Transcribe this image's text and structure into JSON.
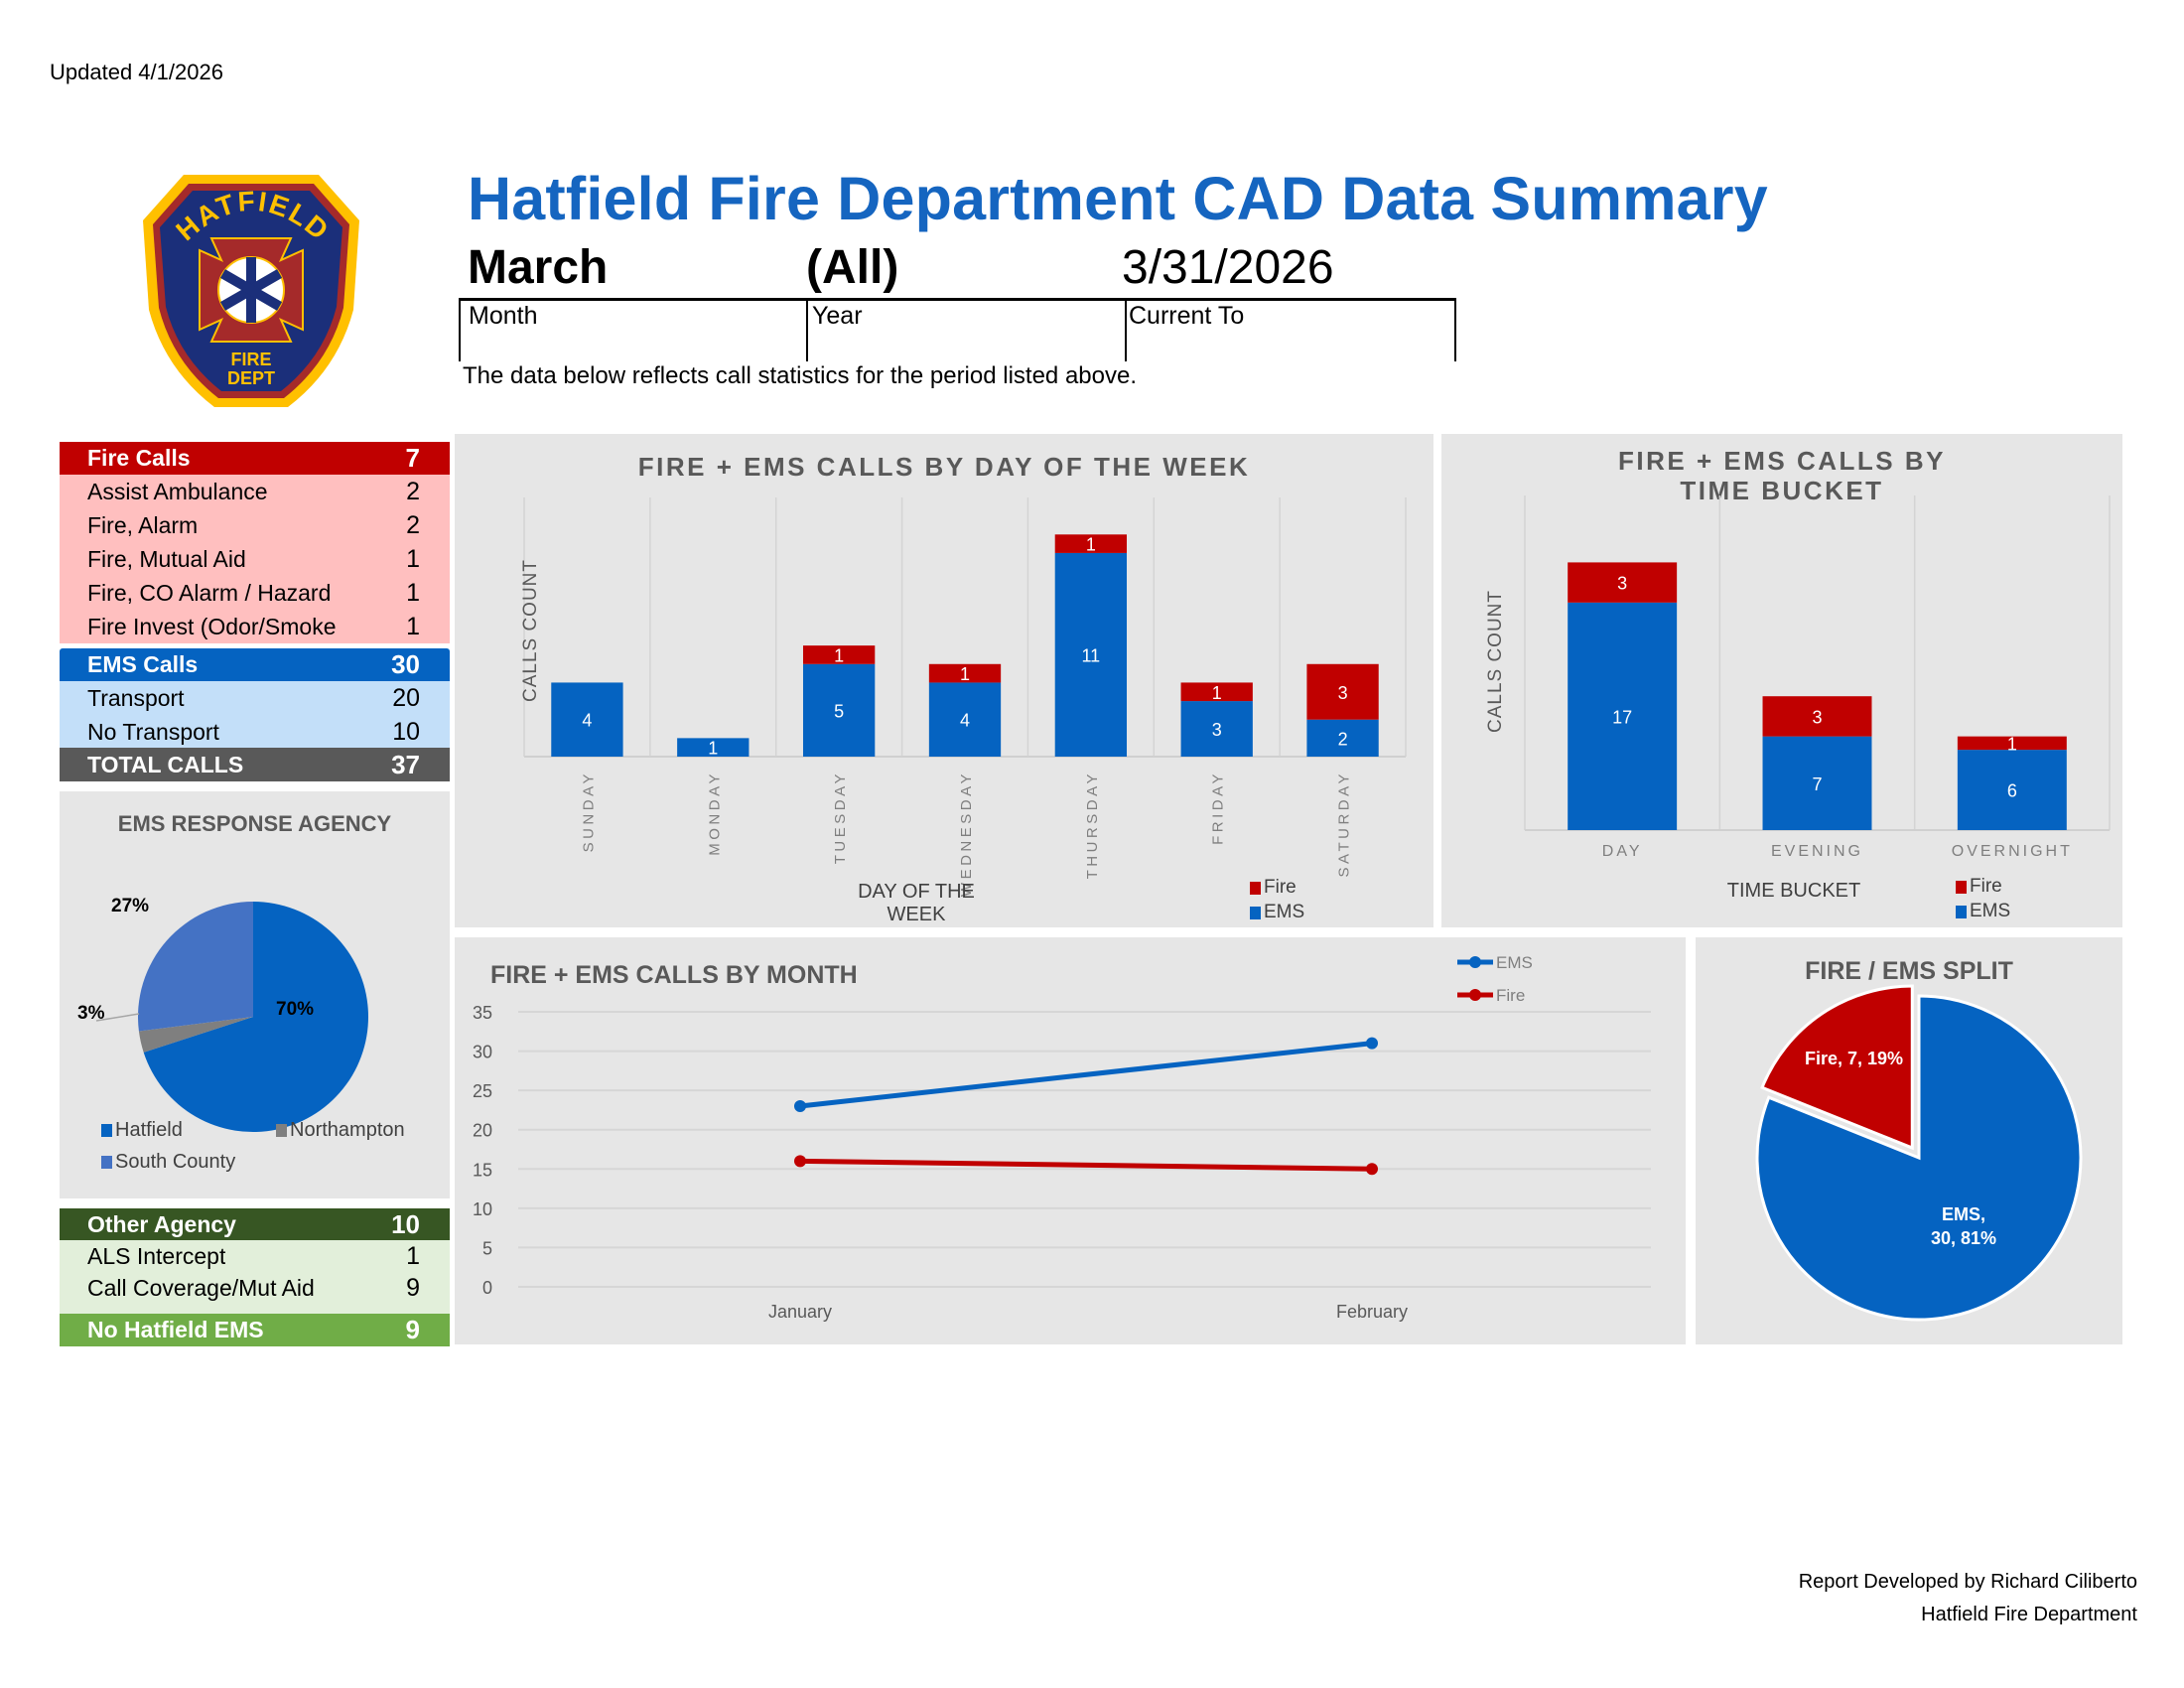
{
  "header": {
    "updated": "Updated 4/1/2026",
    "title": "Hatfield Fire Department CAD Data Summary",
    "month_value": "March",
    "year_value": "(All)",
    "current_value": "3/31/2026",
    "month_label": "Month",
    "year_label": "Year",
    "current_label": "Current To",
    "description": "The data below reflects call statistics for the period listed above."
  },
  "logo": {
    "top_text": "HATFIELD",
    "bottom_text_1": "FIRE",
    "bottom_text_2": "DEPT"
  },
  "fire_calls": {
    "label": "Fire Calls",
    "total": "7",
    "items": [
      {
        "label": "Assist Ambulance",
        "count": "2"
      },
      {
        "label": "Fire, Alarm",
        "count": "2"
      },
      {
        "label": "Fire, Mutual Aid",
        "count": "1"
      },
      {
        "label": "Fire, CO Alarm / Hazard",
        "count": "1"
      },
      {
        "label": "Fire Invest (Odor/Smoke",
        "count": "1"
      }
    ]
  },
  "ems_calls": {
    "label": "EMS Calls",
    "total": "30",
    "items": [
      {
        "label": "Transport",
        "count": "20"
      },
      {
        "label": "No Transport",
        "count": "10"
      }
    ]
  },
  "total_calls": {
    "label": "TOTAL CALLS",
    "total": "37"
  },
  "other_agency": {
    "label": "Other Agency",
    "total": "10",
    "items": [
      {
        "label": "ALS Intercept",
        "count": "1"
      },
      {
        "label": "Call Coverage/Mut Aid",
        "count": "9"
      }
    ]
  },
  "no_hatfield_ems": {
    "label": "No Hatfield EMS",
    "total": "9"
  },
  "colors": {
    "fire": "#c00000",
    "ems": "#0563c1",
    "fire_light": "#ffbfbf",
    "ems_light": "#c3dff9",
    "total": "#595959",
    "other_dark": "#375623",
    "other_light": "#e2efda",
    "other_green": "#70ad47",
    "south_county": "#4472c4",
    "northampton": "#7f7f7f",
    "title_blue": "#1565c0"
  },
  "footer": {
    "line1": "Report Developed by Richard Ciliberto",
    "line2": "Hatfield Fire Department"
  },
  "chart_data": [
    {
      "id": "agency_pie",
      "type": "pie",
      "title": "EMS RESPONSE AGENCY",
      "slices": [
        {
          "name": "Hatfield",
          "value": 70,
          "label": "70%",
          "color": "#0563c1"
        },
        {
          "name": "Northampton",
          "value": 3,
          "label": "3%",
          "color": "#7f7f7f"
        },
        {
          "name": "South County",
          "value": 27,
          "label": "27%",
          "color": "#4472c4"
        }
      ],
      "legend": "bottom"
    },
    {
      "id": "day_of_week",
      "type": "bar",
      "stacked": true,
      "title": "FIRE + EMS CALLS BY DAY OF THE WEEK",
      "xlabel": "DAY OF THE WEEK",
      "ylabel": "CALLS COUNT",
      "categories": [
        "SUNDAY",
        "MONDAY",
        "TUESDAY",
        "WEDNESDAY",
        "THURSDAY",
        "FRIDAY",
        "SATURDAY"
      ],
      "series": [
        {
          "name": "EMS",
          "values": [
            4,
            1,
            5,
            4,
            11,
            3,
            2
          ],
          "color": "#0563c1"
        },
        {
          "name": "Fire",
          "values": [
            0,
            0,
            1,
            1,
            1,
            1,
            3
          ],
          "color": "#c00000"
        }
      ],
      "legend_order": [
        "Fire",
        "EMS"
      ],
      "ylim": [
        0,
        14
      ],
      "legend": "bottom-right"
    },
    {
      "id": "time_bucket",
      "type": "bar",
      "stacked": true,
      "title": "FIRE + EMS CALLS BY TIME BUCKET",
      "xlabel": "TIME BUCKET",
      "ylabel": "CALLS COUNT",
      "categories": [
        "DAY",
        "EVENING",
        "OVERNIGHT"
      ],
      "series": [
        {
          "name": "EMS",
          "values": [
            17,
            7,
            6
          ],
          "color": "#0563c1"
        },
        {
          "name": "Fire",
          "values": [
            3,
            3,
            1
          ],
          "color": "#c00000"
        }
      ],
      "legend_order": [
        "Fire",
        "EMS"
      ],
      "ylim": [
        0,
        25
      ],
      "legend": "bottom-right"
    },
    {
      "id": "by_month",
      "type": "line",
      "title": "FIRE + EMS CALLS BY MONTH",
      "categories": [
        "January",
        "February"
      ],
      "series": [
        {
          "name": "EMS",
          "values": [
            23,
            31
          ],
          "color": "#0563c1"
        },
        {
          "name": "Fire",
          "values": [
            16,
            15
          ],
          "color": "#c00000"
        }
      ],
      "ylim": [
        0,
        35
      ],
      "yticks": [
        "0",
        "5",
        "10",
        "15",
        "20",
        "25",
        "30",
        "35"
      ],
      "grid": true,
      "legend": "top-right"
    },
    {
      "id": "split_pie",
      "type": "pie",
      "title": "FIRE / EMS SPLIT",
      "slices": [
        {
          "name": "Fire",
          "value": 7,
          "label": "Fire, 7, 19%",
          "color": "#c00000"
        },
        {
          "name": "EMS",
          "value": 30,
          "label_line1": "EMS,",
          "label_line2": "30, 81%",
          "color": "#0563c1"
        }
      ]
    }
  ]
}
